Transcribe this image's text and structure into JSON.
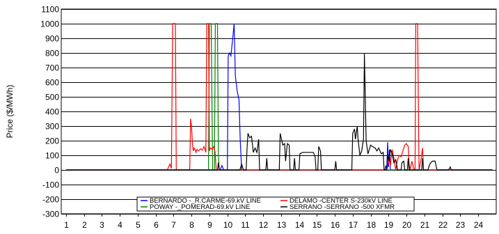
{
  "chart_data": {
    "type": "line",
    "ylabel": "Price ($/MWh)",
    "xlabel": "",
    "title": "",
    "ylim": [
      -300,
      1100
    ],
    "xlim": [
      1,
      24.8
    ],
    "grid": {
      "horizontal": true,
      "vertical": false
    },
    "legend_placement": "bottom-center",
    "y_ticks": [
      1100,
      1000,
      900,
      800,
      700,
      600,
      500,
      400,
      300,
      200,
      100,
      0,
      -100,
      -200,
      -300
    ],
    "x_ticks": [
      1,
      2,
      3,
      4,
      5,
      6,
      7,
      8,
      9,
      10,
      11,
      12,
      13,
      14,
      15,
      16,
      17,
      18,
      19,
      20,
      21,
      22,
      23,
      24
    ],
    "series": [
      {
        "name": "BERNARDO -_R.CARME-69.kV LINE",
        "color": "#0000ff",
        "points": [
          [
            1,
            0
          ],
          [
            9.6,
            0
          ],
          [
            9.7,
            30
          ],
          [
            9.8,
            0
          ],
          [
            10,
            0
          ],
          [
            10.05,
            780
          ],
          [
            10.12,
            800
          ],
          [
            10.2,
            780
          ],
          [
            10.3,
            900
          ],
          [
            10.38,
            1000
          ],
          [
            10.45,
            640
          ],
          [
            10.55,
            540
          ],
          [
            10.65,
            480
          ],
          [
            10.72,
            200
          ],
          [
            10.8,
            0
          ],
          [
            18.8,
            0
          ],
          [
            18.85,
            30
          ],
          [
            18.9,
            0
          ],
          [
            18.95,
            190
          ],
          [
            19.0,
            20
          ],
          [
            19.05,
            140
          ],
          [
            19.1,
            0
          ],
          [
            24.8,
            0
          ]
        ]
      },
      {
        "name": "POWAY -_POMERAD-69.kV LINE",
        "color": "#008000",
        "points": [
          [
            1,
            0
          ],
          [
            8.95,
            0
          ],
          [
            9.0,
            1000
          ],
          [
            9.1,
            1000
          ],
          [
            9.18,
            0
          ],
          [
            9.28,
            0
          ],
          [
            9.33,
            1000
          ],
          [
            9.45,
            1000
          ],
          [
            9.5,
            100
          ],
          [
            9.55,
            0
          ],
          [
            24.8,
            0
          ]
        ]
      },
      {
        "name": "DELAMO -CENTER S-230kV LINE",
        "color": "#ff0000",
        "points": [
          [
            1,
            0
          ],
          [
            6.65,
            0
          ],
          [
            6.72,
            20
          ],
          [
            6.8,
            40
          ],
          [
            6.88,
            10
          ],
          [
            6.95,
            1000
          ],
          [
            7.1,
            1000
          ],
          [
            7.15,
            0
          ],
          [
            7.9,
            0
          ],
          [
            7.95,
            350
          ],
          [
            8.0,
            300
          ],
          [
            8.05,
            180
          ],
          [
            8.1,
            130
          ],
          [
            8.15,
            150
          ],
          [
            8.2,
            140
          ],
          [
            8.25,
            120
          ],
          [
            8.3,
            140
          ],
          [
            8.4,
            130
          ],
          [
            8.5,
            145
          ],
          [
            8.6,
            135
          ],
          [
            8.7,
            160
          ],
          [
            8.8,
            120
          ],
          [
            8.85,
            1000
          ],
          [
            8.95,
            1000
          ],
          [
            9.0,
            130
          ],
          [
            9.05,
            150
          ],
          [
            9.15,
            140
          ],
          [
            9.25,
            160
          ],
          [
            9.32,
            120
          ],
          [
            9.38,
            0
          ],
          [
            18.9,
            0
          ],
          [
            19.0,
            60
          ],
          [
            19.05,
            100
          ],
          [
            19.1,
            30
          ],
          [
            19.2,
            140
          ],
          [
            19.3,
            80
          ],
          [
            19.4,
            0
          ],
          [
            19.5,
            70
          ],
          [
            19.6,
            100
          ],
          [
            19.7,
            90
          ],
          [
            19.8,
            130
          ],
          [
            19.9,
            170
          ],
          [
            20.0,
            180
          ],
          [
            20.1,
            160
          ],
          [
            20.15,
            40
          ],
          [
            20.2,
            0
          ],
          [
            20.3,
            60
          ],
          [
            20.4,
            10
          ],
          [
            20.48,
            0
          ],
          [
            20.52,
            1000
          ],
          [
            20.62,
            1000
          ],
          [
            20.7,
            0
          ],
          [
            20.8,
            60
          ],
          [
            20.9,
            150
          ],
          [
            20.95,
            0
          ],
          [
            24.8,
            0
          ]
        ]
      },
      {
        "name": "SERRANO -SERRANO -500 XFMR",
        "color": "#000000",
        "points": [
          [
            1,
            0
          ],
          [
            9.45,
            0
          ],
          [
            9.5,
            50
          ],
          [
            9.55,
            0
          ],
          [
            10.7,
            0
          ],
          [
            10.8,
            40
          ],
          [
            10.9,
            0
          ],
          [
            11.05,
            0
          ],
          [
            11.1,
            150
          ],
          [
            11.15,
            250
          ],
          [
            11.25,
            220
          ],
          [
            11.35,
            230
          ],
          [
            11.45,
            120
          ],
          [
            11.55,
            150
          ],
          [
            11.65,
            120
          ],
          [
            11.75,
            210
          ],
          [
            11.8,
            0
          ],
          [
            12.15,
            0
          ],
          [
            12.2,
            80
          ],
          [
            12.25,
            0
          ],
          [
            12.9,
            0
          ],
          [
            12.95,
            250
          ],
          [
            13.1,
            170
          ],
          [
            13.2,
            180
          ],
          [
            13.25,
            60
          ],
          [
            13.35,
            180
          ],
          [
            13.45,
            170
          ],
          [
            13.5,
            0
          ],
          [
            13.7,
            0
          ],
          [
            13.75,
            80
          ],
          [
            13.8,
            0
          ],
          [
            14.0,
            0
          ],
          [
            14.05,
            110
          ],
          [
            14.2,
            120
          ],
          [
            14.5,
            120
          ],
          [
            14.8,
            120
          ],
          [
            14.9,
            90
          ],
          [
            14.95,
            0
          ],
          [
            15.05,
            0
          ],
          [
            15.1,
            160
          ],
          [
            15.2,
            130
          ],
          [
            15.25,
            0
          ],
          [
            16.0,
            0
          ],
          [
            16.05,
            60
          ],
          [
            16.1,
            0
          ],
          [
            16.95,
            0
          ],
          [
            17.0,
            250
          ],
          [
            17.1,
            280
          ],
          [
            17.15,
            210
          ],
          [
            17.25,
            300
          ],
          [
            17.3,
            210
          ],
          [
            17.4,
            100
          ],
          [
            17.5,
            130
          ],
          [
            17.6,
            210
          ],
          [
            17.65,
            795
          ],
          [
            17.75,
            200
          ],
          [
            17.85,
            110
          ],
          [
            17.95,
            150
          ],
          [
            18.0,
            170
          ],
          [
            18.1,
            160
          ],
          [
            18.25,
            150
          ],
          [
            18.35,
            130
          ],
          [
            18.45,
            150
          ],
          [
            18.6,
            110
          ],
          [
            18.7,
            120
          ],
          [
            18.75,
            0
          ],
          [
            18.9,
            0
          ],
          [
            18.95,
            100
          ],
          [
            19.0,
            80
          ],
          [
            19.05,
            60
          ],
          [
            19.1,
            140
          ],
          [
            19.2,
            110
          ],
          [
            19.3,
            50
          ],
          [
            19.4,
            70
          ],
          [
            19.5,
            0
          ],
          [
            19.7,
            0
          ],
          [
            19.75,
            50
          ],
          [
            19.85,
            60
          ],
          [
            19.9,
            0
          ],
          [
            20.05,
            0
          ],
          [
            20.1,
            80
          ],
          [
            20.15,
            0
          ],
          [
            20.85,
            0
          ],
          [
            20.9,
            80
          ],
          [
            20.95,
            0
          ],
          [
            21.2,
            0
          ],
          [
            21.3,
            40
          ],
          [
            21.45,
            60
          ],
          [
            21.6,
            60
          ],
          [
            21.7,
            0
          ],
          [
            22.35,
            0
          ],
          [
            22.45,
            20
          ],
          [
            22.5,
            0
          ],
          [
            24.8,
            0
          ]
        ]
      }
    ]
  }
}
